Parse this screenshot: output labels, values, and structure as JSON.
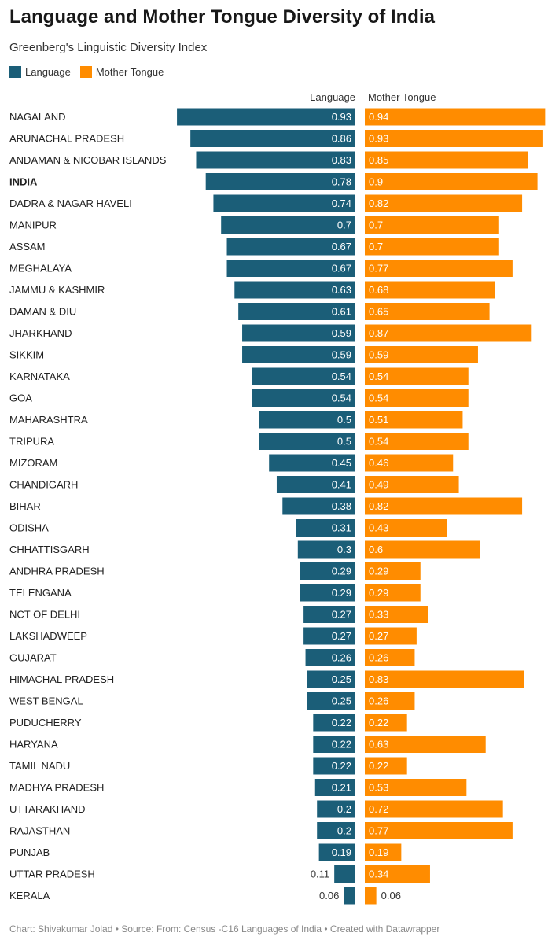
{
  "header": {
    "title": "Language and Mother Tongue Diversity of India",
    "subtitle": "Greenberg's Linguistic Diversity Index"
  },
  "colors": {
    "language": "#1b5e78",
    "mother_tongue": "#ff8c00"
  },
  "chart_data": {
    "type": "bar",
    "orientation": "horizontal",
    "layout": "butterfly",
    "legend_placement": "top-left",
    "grid": false,
    "xlim": [
      0,
      1
    ],
    "categories": [
      "NAGALAND",
      "ARUNACHAL PRADESH",
      "ANDAMAN & NICOBAR ISLANDS",
      "INDIA",
      "DADRA & NAGAR HAVELI",
      "MANIPUR",
      "ASSAM",
      "MEGHALAYA",
      "JAMMU & KASHMIR",
      "DAMAN & DIU",
      "JHARKHAND",
      "SIKKIM",
      "KARNATAKA",
      "GOA",
      "MAHARASHTRA",
      "TRIPURA",
      "MIZORAM",
      "CHANDIGARH",
      "BIHAR",
      "ODISHA",
      "CHHATTISGARH",
      "ANDHRA PRADESH",
      "TELENGANA",
      "NCT OF DELHI",
      "LAKSHADWEEP",
      "GUJARAT",
      "HIMACHAL PRADESH",
      "WEST BENGAL",
      "PUDUCHERRY",
      "HARYANA",
      "TAMIL NADU",
      "MADHYA PRADESH",
      "UTTARAKHAND",
      "RAJASTHAN",
      "PUNJAB",
      "UTTAR PRADESH",
      "KERALA"
    ],
    "highlighted_category": "INDIA",
    "series": [
      {
        "name": "Language",
        "column_label": "Language",
        "values": [
          0.93,
          0.86,
          0.83,
          0.78,
          0.74,
          0.7,
          0.67,
          0.67,
          0.63,
          0.61,
          0.59,
          0.59,
          0.54,
          0.54,
          0.5,
          0.5,
          0.45,
          0.41,
          0.38,
          0.31,
          0.3,
          0.29,
          0.29,
          0.27,
          0.27,
          0.26,
          0.25,
          0.25,
          0.22,
          0.22,
          0.22,
          0.21,
          0.2,
          0.2,
          0.19,
          0.11,
          0.06
        ]
      },
      {
        "name": "Mother Tongue",
        "column_label": "Mother Tongue",
        "values": [
          0.94,
          0.93,
          0.85,
          0.9,
          0.82,
          0.7,
          0.7,
          0.77,
          0.68,
          0.65,
          0.87,
          0.59,
          0.54,
          0.54,
          0.51,
          0.54,
          0.46,
          0.49,
          0.82,
          0.43,
          0.6,
          0.29,
          0.29,
          0.33,
          0.27,
          0.26,
          0.83,
          0.26,
          0.22,
          0.63,
          0.22,
          0.53,
          0.72,
          0.77,
          0.19,
          0.34,
          0.06
        ]
      }
    ]
  },
  "footer": {
    "credit": "Chart: Shivakumar Jolad • Source: From: Census -C16 Languages of India • Created with Datawrapper"
  }
}
